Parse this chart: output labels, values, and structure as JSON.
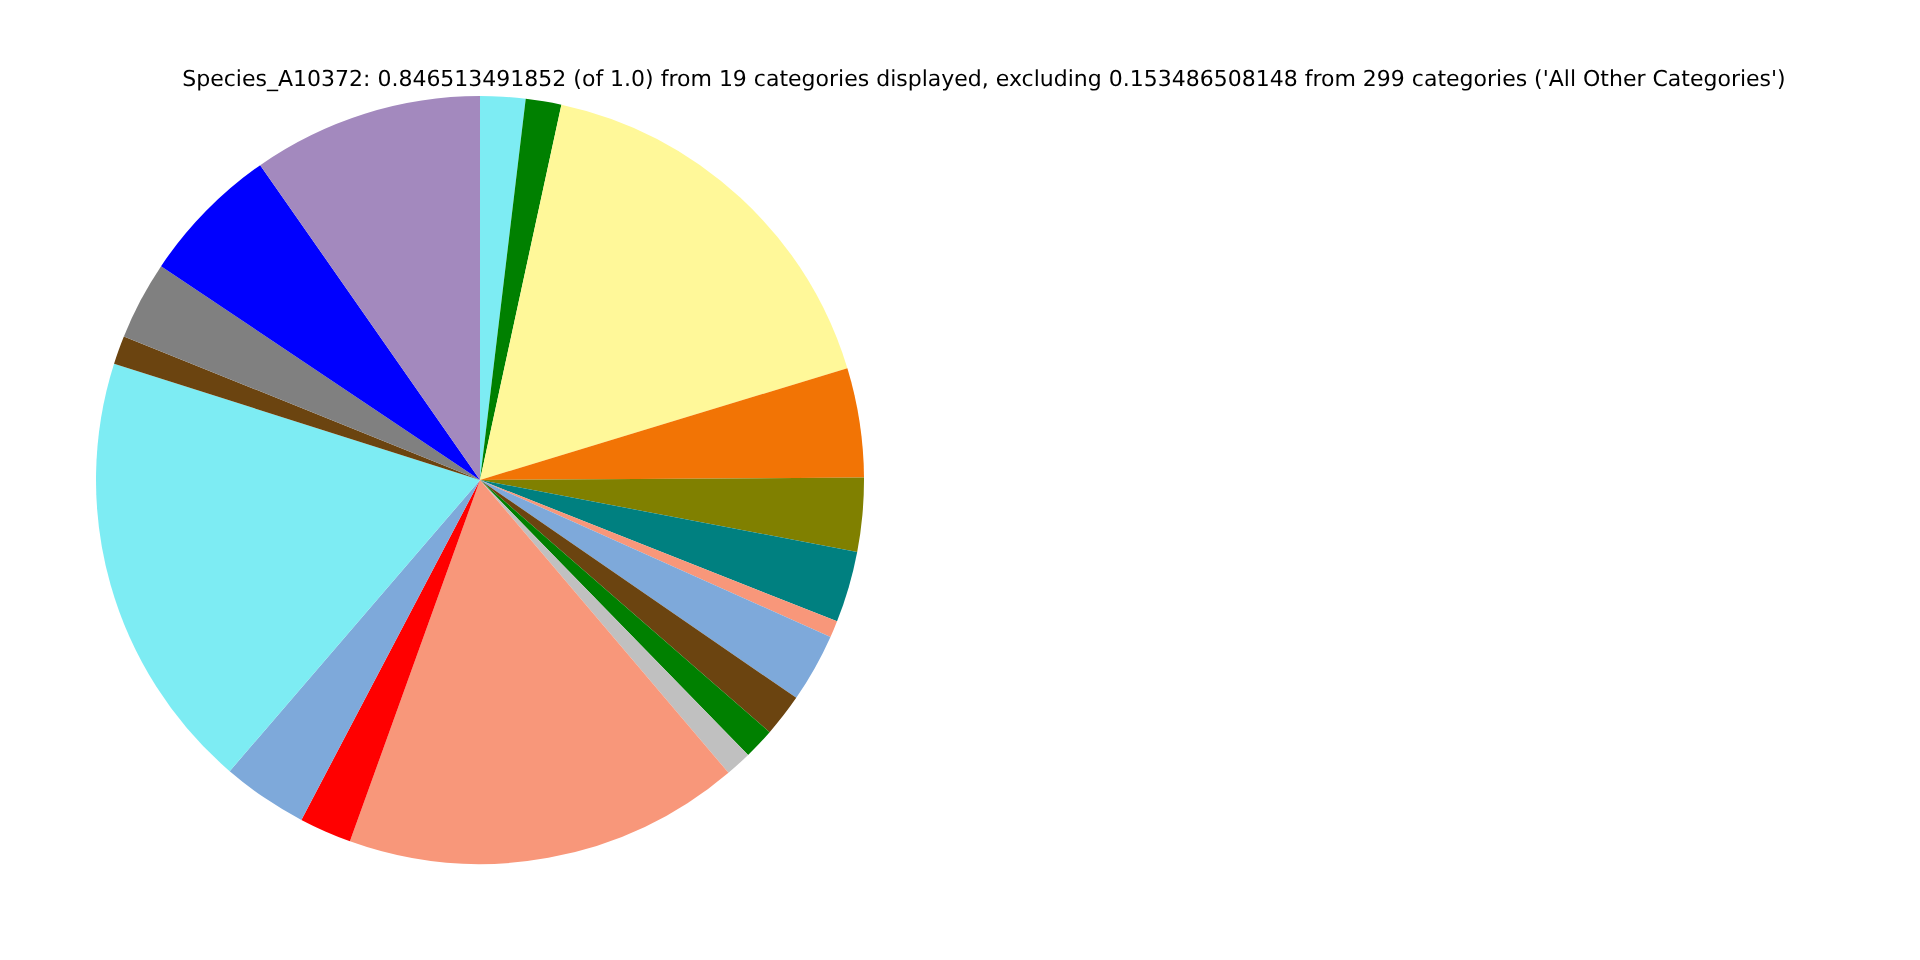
{
  "chart_data": {
    "type": "pie",
    "title": "Species_A10372: 0.846513491852 (of 1.0) from 19 categories displayed, excluding 0.153486508148 from 299 categories ('All Other Categories')",
    "categories": [
      null,
      null,
      null,
      null,
      null,
      null,
      null,
      null,
      null,
      null,
      null,
      null,
      null,
      null,
      null,
      null,
      null,
      null,
      null
    ],
    "values": [
      1.9,
      1.5,
      16.9,
      4.6,
      3.1,
      3.0,
      0.7,
      2.9,
      1.8,
      1.3,
      1.1,
      16.7,
      2.2,
      3.6,
      18.6,
      1.2,
      3.3,
      5.9,
      9.7
    ],
    "colors": [
      "#7decf3",
      "#008000",
      "#fff899",
      "#f27405",
      "#808000",
      "#008080",
      "#f8977a",
      "#7ea9da",
      "#6b4410",
      "#008000",
      "#c0c0c0",
      "#f8977a",
      "#ff0000",
      "#7ea9da",
      "#7decf3",
      "#6b4410",
      "#808080",
      "#0000ff",
      "#a389be"
    ],
    "legend": false
  }
}
